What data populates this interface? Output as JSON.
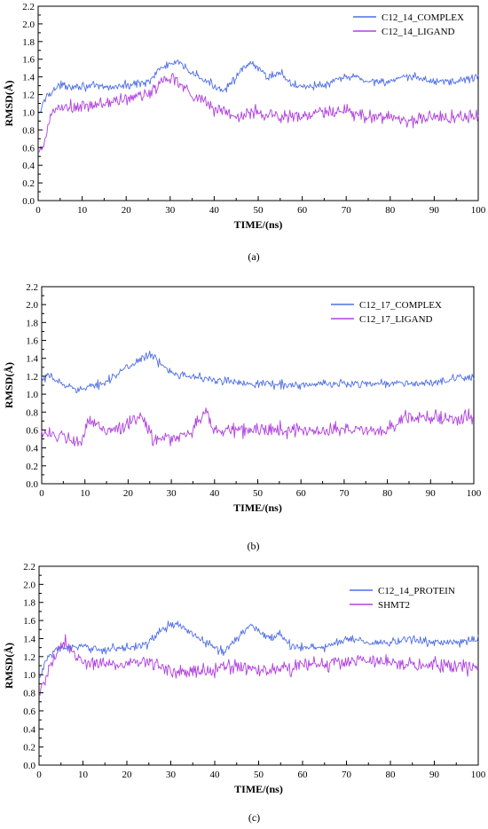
{
  "chart_data": [
    {
      "type": "line",
      "caption": "(a)",
      "xlabel": "TIME/(ns)",
      "ylabel": "RMSD(Å)",
      "xlim": [
        0,
        100
      ],
      "ylim": [
        0,
        2.2
      ],
      "xticks": [
        0,
        10,
        20,
        30,
        40,
        50,
        60,
        70,
        80,
        90,
        100
      ],
      "yticks": [
        0.0,
        0.2,
        0.4,
        0.6,
        0.8,
        1.0,
        1.2,
        1.4,
        1.6,
        1.8,
        2.0,
        2.2
      ],
      "legend": "top-right",
      "grid": false,
      "series": [
        {
          "name": "C12_14_COMPLEX",
          "color": "#4f6fe8",
          "x": [
            0,
            2,
            5,
            10,
            15,
            20,
            25,
            28,
            30,
            32,
            35,
            38,
            42,
            45,
            48,
            50,
            52,
            55,
            58,
            62,
            65,
            70,
            72,
            75,
            80,
            85,
            90,
            95,
            100
          ],
          "values": [
            0.95,
            1.2,
            1.3,
            1.3,
            1.28,
            1.3,
            1.35,
            1.5,
            1.55,
            1.55,
            1.45,
            1.35,
            1.25,
            1.4,
            1.55,
            1.5,
            1.4,
            1.45,
            1.3,
            1.3,
            1.3,
            1.4,
            1.4,
            1.35,
            1.35,
            1.4,
            1.35,
            1.35,
            1.4
          ]
        },
        {
          "name": "C12_14_LIGAND",
          "color": "#b040e0",
          "x": [
            0,
            1,
            2,
            3,
            5,
            10,
            15,
            20,
            25,
            28,
            30,
            32,
            35,
            40,
            45,
            50,
            55,
            60,
            65,
            70,
            75,
            80,
            85,
            90,
            95,
            100
          ],
          "values": [
            0.5,
            0.6,
            0.75,
            1.0,
            1.05,
            1.05,
            1.1,
            1.15,
            1.2,
            1.35,
            1.4,
            1.35,
            1.2,
            1.05,
            0.95,
            1.0,
            0.95,
            0.95,
            1.0,
            1.0,
            0.95,
            0.95,
            0.9,
            0.95,
            0.95,
            0.95
          ]
        }
      ]
    },
    {
      "type": "line",
      "caption": "(b)",
      "xlabel": "TIME/(ns)",
      "ylabel": "RMSD(Å)",
      "xlim": [
        0,
        100
      ],
      "ylim": [
        0,
        2.2
      ],
      "xticks": [
        0,
        10,
        20,
        30,
        40,
        50,
        60,
        70,
        80,
        90,
        100
      ],
      "yticks": [
        0.0,
        0.2,
        0.4,
        0.6,
        0.8,
        1.0,
        1.2,
        1.4,
        1.6,
        1.8,
        2.0,
        2.2
      ],
      "legend": "top-right",
      "grid": false,
      "series": [
        {
          "name": "C12_17_COMPLEX",
          "color": "#4f6fe8",
          "x": [
            0,
            2,
            5,
            10,
            15,
            20,
            23,
            25,
            27,
            30,
            35,
            40,
            50,
            60,
            70,
            80,
            90,
            100
          ],
          "values": [
            1.15,
            1.2,
            1.1,
            1.05,
            1.15,
            1.3,
            1.4,
            1.45,
            1.35,
            1.25,
            1.2,
            1.15,
            1.12,
            1.1,
            1.12,
            1.12,
            1.12,
            1.2
          ]
        },
        {
          "name": "C12_17_LIGAND",
          "color": "#b040e0",
          "x": [
            0,
            5,
            9,
            11,
            15,
            20,
            23,
            26,
            30,
            35,
            38,
            40,
            50,
            60,
            70,
            80,
            85,
            90,
            95,
            100
          ],
          "values": [
            0.6,
            0.5,
            0.45,
            0.7,
            0.6,
            0.65,
            0.75,
            0.5,
            0.5,
            0.6,
            0.8,
            0.6,
            0.6,
            0.6,
            0.6,
            0.6,
            0.75,
            0.75,
            0.7,
            0.75
          ]
        }
      ]
    },
    {
      "type": "line",
      "caption": "(c)",
      "xlabel": "TIME/(ns)",
      "ylabel": "RMSD(Å)",
      "xlim": [
        0,
        100
      ],
      "ylim": [
        0,
        2.2
      ],
      "xticks": [
        0,
        10,
        20,
        30,
        40,
        50,
        60,
        70,
        80,
        90,
        100
      ],
      "yticks": [
        0.0,
        0.2,
        0.4,
        0.6,
        0.8,
        1.0,
        1.2,
        1.4,
        1.6,
        1.8,
        2.0,
        2.2
      ],
      "legend": "top-right",
      "grid": false,
      "series": [
        {
          "name": "C12_14_PROTEIN",
          "color": "#4f6fe8",
          "x": [
            0,
            2,
            5,
            10,
            15,
            20,
            25,
            28,
            30,
            32,
            35,
            38,
            42,
            45,
            48,
            50,
            52,
            55,
            58,
            62,
            65,
            70,
            72,
            75,
            80,
            85,
            90,
            95,
            100
          ],
          "values": [
            0.95,
            1.2,
            1.3,
            1.3,
            1.28,
            1.3,
            1.35,
            1.5,
            1.55,
            1.55,
            1.45,
            1.35,
            1.25,
            1.4,
            1.55,
            1.5,
            1.4,
            1.45,
            1.3,
            1.3,
            1.3,
            1.4,
            1.4,
            1.35,
            1.35,
            1.4,
            1.35,
            1.35,
            1.4
          ]
        },
        {
          "name": "SHMT2",
          "color": "#b040e0",
          "x": [
            0,
            1,
            2,
            3,
            5,
            6,
            8,
            10,
            15,
            20,
            25,
            30,
            35,
            40,
            45,
            50,
            55,
            60,
            65,
            70,
            75,
            80,
            85,
            90,
            95,
            100
          ],
          "values": [
            0.75,
            0.9,
            1.05,
            1.15,
            1.3,
            1.35,
            1.2,
            1.15,
            1.12,
            1.12,
            1.15,
            1.05,
            1.05,
            1.05,
            1.1,
            1.05,
            1.05,
            1.1,
            1.12,
            1.15,
            1.15,
            1.12,
            1.12,
            1.1,
            1.08,
            1.1
          ]
        }
      ]
    }
  ]
}
